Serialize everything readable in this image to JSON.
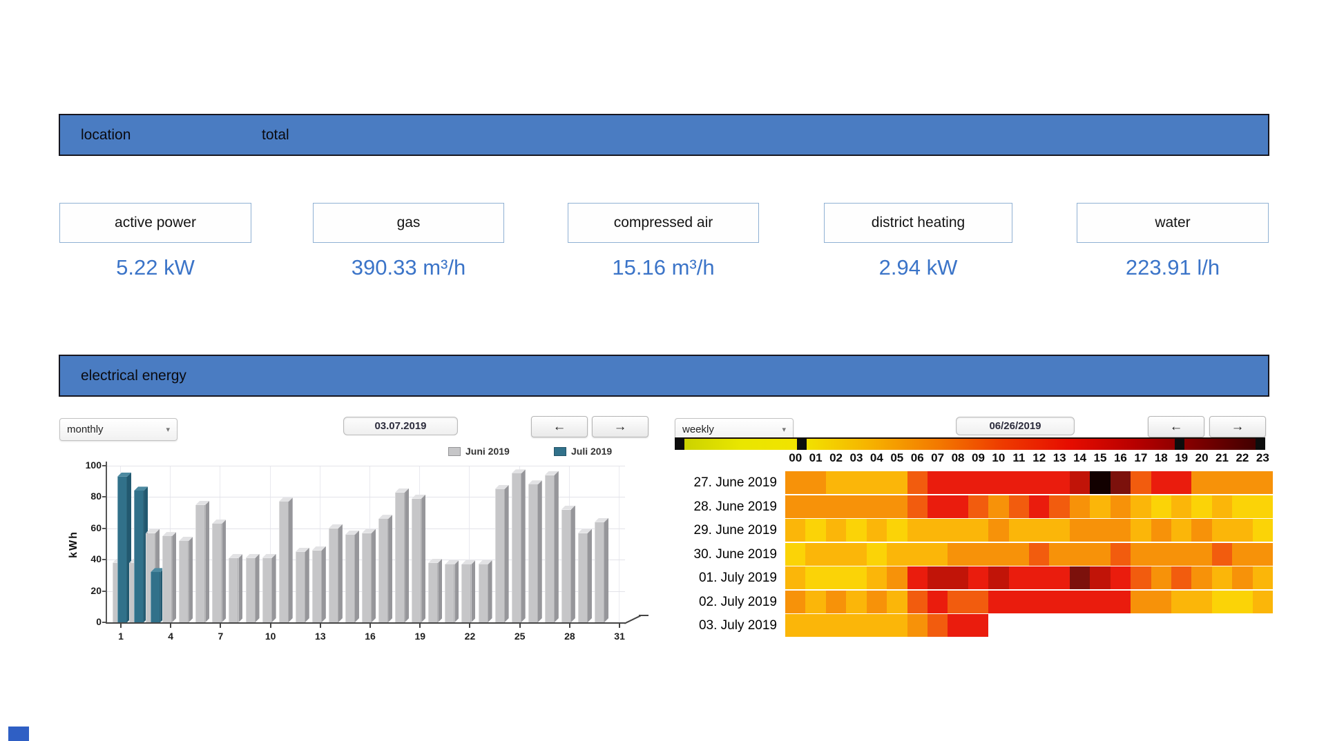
{
  "location_bar": {
    "location": "location",
    "total": "total"
  },
  "metrics": [
    {
      "label": "active power",
      "value": "5.22 kW"
    },
    {
      "label": "gas",
      "value": "390.33 m³/h"
    },
    {
      "label": "compressed air",
      "value": "15.16 m³/h"
    },
    {
      "label": "district heating",
      "value": "2.94 kW"
    },
    {
      "label": "water",
      "value": "223.91 l/h"
    }
  ],
  "section_bar": {
    "label": "electrical energy"
  },
  "bar_panel": {
    "interval": "monthly",
    "caret": "▾",
    "date": "03.07.2019",
    "prev": "←",
    "next": "→"
  },
  "heatmap_panel": {
    "interval": "weekly",
    "caret": "▾",
    "date": "06/26/2019",
    "prev": "←",
    "next": "→"
  },
  "colors": {
    "header_blue": "#4a7cc2",
    "value_blue": "#3b74c8"
  },
  "chart_data": [
    {
      "type": "bar",
      "title": "daily electrical energy",
      "ylabel": "kWh",
      "ylim": [
        0,
        100
      ],
      "yticks": [
        0,
        20,
        40,
        60,
        80,
        100
      ],
      "xticks": [
        1,
        4,
        7,
        10,
        13,
        16,
        19,
        22,
        25,
        28,
        31
      ],
      "categories": [
        1,
        2,
        3,
        4,
        5,
        6,
        7,
        8,
        9,
        10,
        11,
        12,
        13,
        14,
        15,
        16,
        17,
        18,
        19,
        20,
        21,
        22,
        23,
        24,
        25,
        26,
        27,
        28,
        29,
        30
      ],
      "series": [
        {
          "name": "Juni 2019",
          "color": "#c6c6c8",
          "values": [
            38,
            38,
            57,
            55,
            52,
            75,
            63,
            41,
            41,
            41,
            77,
            45,
            46,
            60,
            56,
            57,
            66,
            83,
            79,
            38,
            37,
            37,
            37,
            85,
            95,
            88,
            94,
            72,
            57,
            64
          ]
        },
        {
          "name": "Juli 2019",
          "color": "#31718a",
          "values": [
            93,
            84,
            32
          ]
        }
      ]
    },
    {
      "type": "heatmap",
      "columns": [
        "00",
        "01",
        "02",
        "03",
        "04",
        "05",
        "06",
        "07",
        "08",
        "09",
        "10",
        "11",
        "12",
        "13",
        "14",
        "15",
        "16",
        "17",
        "18",
        "19",
        "20",
        "21",
        "22",
        "23"
      ],
      "rows": [
        "27. June 2019",
        "28. June 2019",
        "29. June 2019",
        "30. June 2019",
        "01. July 2019",
        "02. July 2019",
        "03. July 2019"
      ],
      "palette": {
        "Y": "#fbd307",
        "A": "#fbb609",
        "O": "#f79209",
        "D": "#f25c0e",
        "R": "#ea1c0d",
        "K": "#c11408",
        "M": "#7c110c",
        "B": "#120100"
      },
      "cells": [
        [
          "O",
          "O",
          "A",
          "A",
          "A",
          "A",
          "D",
          "R",
          "R",
          "R",
          "R",
          "R",
          "R",
          "R",
          "K",
          "B",
          "M",
          "D",
          "R",
          "R",
          "O",
          "O",
          "O",
          "O"
        ],
        [
          "O",
          "O",
          "O",
          "O",
          "O",
          "O",
          "D",
          "R",
          "R",
          "D",
          "O",
          "D",
          "R",
          "D",
          "O",
          "A",
          "O",
          "A",
          "Y",
          "A",
          "Y",
          "A",
          "Y",
          "Y"
        ],
        [
          "A",
          "Y",
          "A",
          "Y",
          "A",
          "Y",
          "A",
          "A",
          "A",
          "A",
          "O",
          "A",
          "A",
          "A",
          "O",
          "O",
          "O",
          "A",
          "O",
          "A",
          "O",
          "A",
          "A",
          "Y"
        ],
        [
          "Y",
          "A",
          "A",
          "A",
          "Y",
          "A",
          "A",
          "A",
          "O",
          "O",
          "O",
          "O",
          "D",
          "O",
          "O",
          "O",
          "D",
          "O",
          "O",
          "O",
          "O",
          "D",
          "O",
          "O"
        ],
        [
          "A",
          "Y",
          "Y",
          "Y",
          "A",
          "O",
          "R",
          "K",
          "K",
          "R",
          "K",
          "R",
          "R",
          "R",
          "M",
          "K",
          "R",
          "D",
          "O",
          "D",
          "O",
          "A",
          "O",
          "A"
        ],
        [
          "O",
          "A",
          "O",
          "A",
          "O",
          "A",
          "D",
          "R",
          "D",
          "D",
          "R",
          "R",
          "R",
          "R",
          "R",
          "R",
          "R",
          "O",
          "O",
          "A",
          "A",
          "Y",
          "Y",
          "A"
        ],
        [
          "A",
          "A",
          "A",
          "A",
          "A",
          "A",
          "O",
          "D",
          "R",
          "R"
        ]
      ],
      "scale": {
        "gradient": [
          "#c6cf00",
          "#e9e600",
          "#f2e200",
          "#f6b100",
          "#f37a00",
          "#ee3a00",
          "#e60d00",
          "#b80000",
          "#7a0000",
          "#380000"
        ],
        "handles_pct": [
          0,
          21.5,
          85.5,
          100
        ]
      }
    }
  ]
}
